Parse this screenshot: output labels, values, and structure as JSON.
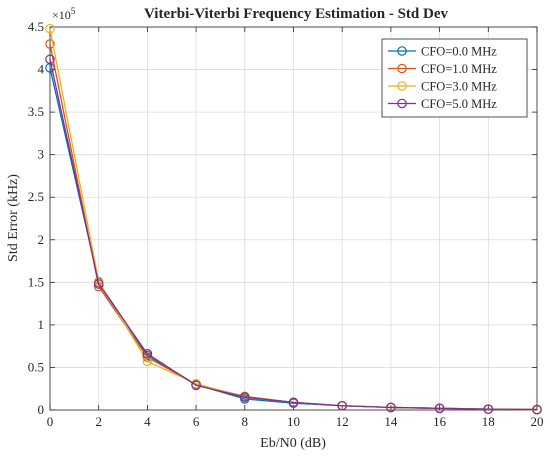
{
  "chart_data": {
    "type": "line",
    "title": "Viterbi-Viterbi Frequency Estimation - Std Dev",
    "xlabel": "Eb/N0 (dB)",
    "ylabel": "Std Error (kHz)",
    "y_exponent_label": "×10",
    "y_exponent_power": "5",
    "xlim": [
      0,
      20
    ],
    "ylim": [
      0,
      4.5
    ],
    "y_scale_multiplier": 100000,
    "x_ticks": [
      0,
      2,
      4,
      6,
      8,
      10,
      12,
      14,
      16,
      18,
      20
    ],
    "x_tick_labels": [
      "0",
      "2",
      "4",
      "6",
      "8",
      "10",
      "12",
      "14",
      "16",
      "18",
      "20"
    ],
    "y_ticks": [
      0,
      0.5,
      1,
      1.5,
      2,
      2.5,
      3,
      3.5,
      4,
      4.5
    ],
    "y_tick_labels": [
      "0",
      "0.5",
      "1",
      "1.5",
      "2",
      "2.5",
      "3",
      "3.5",
      "4",
      "4.5"
    ],
    "grid": true,
    "legend_position": "top-right",
    "x": [
      0,
      2,
      4,
      6,
      8,
      10,
      12,
      14,
      16,
      18,
      20
    ],
    "series": [
      {
        "name": "CFO=0.0 MHz",
        "color": "#0072BD",
        "values": [
          4.02,
          1.5,
          0.64,
          0.3,
          0.13,
          0.08,
          0.05,
          0.03,
          0.02,
          0.01,
          0.005
        ]
      },
      {
        "name": "CFO=1.0 MHz",
        "color": "#D95319",
        "values": [
          4.3,
          1.45,
          0.62,
          0.3,
          0.16,
          0.09,
          0.05,
          0.03,
          0.02,
          0.01,
          0.005
        ]
      },
      {
        "name": "CFO=3.0 MHz",
        "color": "#EDB120",
        "values": [
          4.48,
          1.51,
          0.57,
          0.31,
          0.15,
          0.09,
          0.05,
          0.03,
          0.02,
          0.01,
          0.005
        ]
      },
      {
        "name": "CFO=5.0 MHz",
        "color": "#7E2F8E",
        "values": [
          4.12,
          1.48,
          0.66,
          0.29,
          0.15,
          0.09,
          0.05,
          0.03,
          0.02,
          0.01,
          0.005
        ]
      }
    ]
  }
}
